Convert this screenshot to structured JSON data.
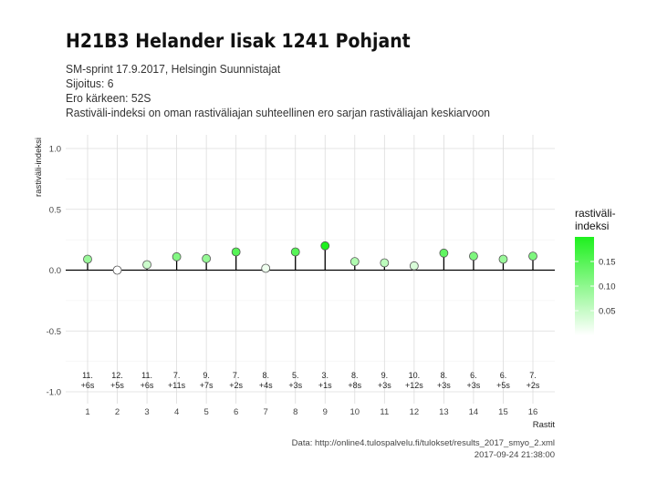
{
  "header": {
    "title": "H21B3 Helander Iisak 1241 Pohjant",
    "subtitle_lines": [
      "SM-sprint 17.9.2017, Helsingin Suunnistajat",
      "Sijoitus: 6",
      "Ero kärkeen: 52S",
      "Rastiväli-indeksi on oman rastiväliajan suhteellinen ero sarjan rastiväliajan keskiarvoon"
    ]
  },
  "caption": {
    "source": "Data: http://online4.tulospalvelu.fi/tulokset/results_2017_smyo_2.xml",
    "timestamp": "2017-09-24 21:38:00"
  },
  "chart_data": {
    "type": "scatter",
    "style": "lollipop",
    "xlabel": "Rastit",
    "ylabel": "rastiväli-indeksi",
    "ylim": [
      -1.0,
      1.0
    ],
    "y_ticks": [
      "1.0",
      "0.5",
      "0.0",
      "-0.5",
      "-1.0"
    ],
    "x": [
      1,
      2,
      3,
      4,
      5,
      6,
      7,
      8,
      9,
      10,
      11,
      12,
      13,
      14,
      15,
      16
    ],
    "values": [
      0.09,
      0.0,
      0.045,
      0.11,
      0.095,
      0.15,
      0.015,
      0.15,
      0.2,
      0.07,
      0.06,
      0.035,
      0.14,
      0.115,
      0.09,
      0.115
    ],
    "rank_labels": [
      "11.",
      "12.",
      "11.",
      "7.",
      "9.",
      "7.",
      "8.",
      "5.",
      "3.",
      "8.",
      "9.",
      "10.",
      "8.",
      "6.",
      "6.",
      "7."
    ],
    "diff_labels": [
      "+6s",
      "+5s",
      "+6s",
      "+11s",
      "+7s",
      "+2s",
      "+4s",
      "+3s",
      "+1s",
      "+8s",
      "+3s",
      "+12s",
      "+3s",
      "+3s",
      "+5s",
      "+2s"
    ],
    "grid": true,
    "legend": {
      "title_lines": [
        "rastiväli-",
        "indeksi"
      ],
      "ticks": [
        "0.15",
        "0.10",
        "0.05"
      ],
      "tick_values": [
        0.15,
        0.1,
        0.05
      ],
      "range": [
        0.0,
        0.2
      ],
      "color_low": "#ffffff",
      "color_high": "#1ef01e",
      "placement": "right"
    }
  }
}
